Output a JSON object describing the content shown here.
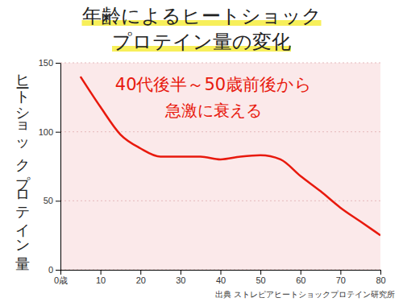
{
  "chart_data": {
    "type": "line",
    "title": [
      "年齢によるヒートショック",
      "プロテイン量の変化"
    ],
    "ylabel": "ヒートショックプロテイン量",
    "annotation": [
      "40代後半～50歳前後から",
      "急激に衰える"
    ],
    "source": "出典 ストレピアヒートショックプロテイン研究所",
    "x": [
      5,
      10,
      15,
      20,
      25,
      30,
      35,
      40,
      45,
      50,
      55,
      60,
      65,
      70,
      75,
      80
    ],
    "values": [
      140,
      118,
      98,
      88,
      82,
      82,
      82,
      80,
      82,
      83,
      80,
      68,
      57,
      45,
      35,
      25
    ],
    "color": "#e8190d",
    "xlim": [
      0,
      80
    ],
    "xticks": [
      {
        "value": 0,
        "label": "0歳"
      },
      10,
      20,
      30,
      40,
      50,
      60,
      70,
      80
    ],
    "ylim": [
      0,
      150
    ],
    "yticks": [
      0,
      50,
      100,
      150
    ],
    "grid": true
  }
}
